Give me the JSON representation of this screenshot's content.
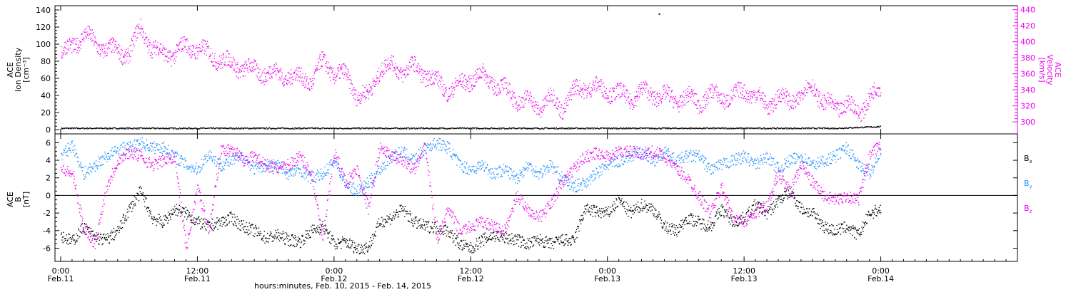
{
  "colors": {
    "black": "#000000",
    "magenta": "#ee00ee",
    "blue": "#1e90ff",
    "axis": "#000000"
  },
  "x_axis": {
    "ticks": [
      {
        "time_line1": "0:00",
        "time_line2": "Feb.11",
        "hours": 0
      },
      {
        "time_line1": "12:00",
        "time_line2": "Feb.11",
        "hours": 12
      },
      {
        "time_line1": "0:00",
        "time_line2": "Feb.12",
        "hours": 24
      },
      {
        "time_line1": "12:00",
        "time_line2": "Feb.12",
        "hours": 36
      },
      {
        "time_line1": "0:00",
        "time_line2": "Feb.13",
        "hours": 48
      },
      {
        "time_line1": "12:00",
        "time_line2": "Feb.13",
        "hours": 60
      },
      {
        "time_line1": "0:00",
        "time_line2": "Feb.14",
        "hours": 72
      }
    ],
    "title": "hours:minutes, Feb. 10, 2015 - Feb. 14, 2015"
  },
  "chart_data": [
    {
      "type": "scatter",
      "panel": "top",
      "ylabel_left": [
        "ACE",
        "Ion Density",
        "[cm⁻³]"
      ],
      "ylabel_right": [
        "ACE",
        "Velocity",
        "[km/s]"
      ],
      "y_ticks_left": [
        "0",
        "20",
        "40",
        "60",
        "80",
        "100",
        "120",
        "140"
      ],
      "y_ticks_right": [
        "300",
        "320",
        "340",
        "360",
        "380",
        "400",
        "420",
        "440"
      ],
      "ylim_left": [
        -5,
        145
      ],
      "ylim_right": [
        285,
        445
      ],
      "xlim_hours": [
        -0.5,
        84
      ],
      "grid": false,
      "series": [
        {
          "axis": "left",
          "color_key": "black",
          "x": [
            0,
            4,
            8,
            12,
            16,
            20,
            24,
            28,
            32,
            36,
            40,
            44,
            48,
            52,
            56,
            60,
            64,
            68,
            72
          ],
          "values": [
            2,
            2,
            2,
            2,
            2,
            2,
            2,
            2,
            2,
            2,
            2,
            2,
            2,
            2,
            2,
            2,
            2,
            2,
            4
          ]
        },
        {
          "axis": "right",
          "color_key": "magenta",
          "x": [
            0,
            1,
            2,
            3,
            4,
            5,
            6,
            7,
            8,
            9,
            10,
            11,
            12,
            13,
            14,
            15,
            16,
            17,
            18,
            19,
            20,
            21,
            22,
            23,
            24,
            25,
            26,
            27,
            28,
            29,
            30,
            31,
            32,
            33,
            34,
            35,
            36,
            37,
            38,
            39,
            40,
            41,
            42,
            43,
            44,
            45,
            46,
            47,
            48,
            49,
            50,
            51,
            52,
            53,
            54,
            55,
            56,
            57,
            58,
            59,
            60,
            61,
            62,
            63,
            64,
            65,
            66,
            67,
            68,
            69,
            70,
            71,
            72
          ],
          "values": [
            385,
            395,
            410,
            398,
            392,
            388,
            386,
            418,
            392,
            385,
            386,
            395,
            392,
            385,
            378,
            372,
            368,
            364,
            362,
            360,
            358,
            355,
            352,
            375,
            362,
            358,
            335,
            332,
            368,
            370,
            365,
            368,
            360,
            350,
            340,
            345,
            355,
            358,
            350,
            340,
            330,
            325,
            320,
            330,
            318,
            338,
            345,
            342,
            340,
            335,
            330,
            338,
            335,
            332,
            328,
            330,
            325,
            334,
            332,
            330,
            342,
            332,
            322,
            330,
            328,
            332,
            348,
            322,
            320,
            322,
            312,
            330,
            342
          ]
        }
      ]
    },
    {
      "type": "scatter",
      "panel": "bottom",
      "ylabel_left": [
        "ACE",
        "B",
        "[nT]"
      ],
      "y_ticks_left": [
        "-6",
        "-4",
        "-2",
        "0",
        "2",
        "4",
        "6"
      ],
      "ylim_left": [
        -7.5,
        7
      ],
      "xlim_hours": [
        -0.5,
        84
      ],
      "grid": false,
      "zero_line": true,
      "legend_labels": [
        {
          "base": "B",
          "sub": "x",
          "color_key": "black"
        },
        {
          "base": "B",
          "sub": "y",
          "color_key": "blue"
        },
        {
          "base": "B",
          "sub": "z",
          "color_key": "magenta"
        }
      ],
      "legend_placement": "right",
      "series": [
        {
          "color_key": "black",
          "x": [
            0,
            1,
            2,
            3,
            4,
            5,
            6,
            7,
            8,
            9,
            10,
            11,
            12,
            13,
            14,
            15,
            16,
            17,
            18,
            19,
            20,
            21,
            22,
            23,
            24,
            25,
            26,
            27,
            28,
            29,
            30,
            31,
            32,
            33,
            34,
            35,
            36,
            37,
            38,
            39,
            40,
            41,
            42,
            43,
            44,
            45,
            46,
            47,
            48,
            49,
            50,
            51,
            52,
            53,
            54,
            55,
            56,
            57,
            58,
            59,
            60,
            61,
            62,
            63,
            64,
            65,
            66,
            67,
            68,
            69,
            70,
            71,
            72
          ],
          "values": [
            -4.5,
            -5.2,
            -3.5,
            -4.8,
            -5.0,
            -4.0,
            -1.5,
            0.5,
            -2.5,
            -3.0,
            -1.5,
            -2.0,
            -3.0,
            -3.5,
            -3.0,
            -2.5,
            -3.5,
            -4.0,
            -4.8,
            -4.5,
            -5.0,
            -5.2,
            -4.0,
            -3.5,
            -5.5,
            -5.2,
            -6.0,
            -5.8,
            -3.0,
            -2.5,
            -1.5,
            -3.0,
            -3.5,
            -3.5,
            -4.0,
            -5.5,
            -6.0,
            -5.0,
            -4.5,
            -4.8,
            -5.0,
            -5.5,
            -5.0,
            -5.5,
            -5.0,
            -5.2,
            -1.5,
            -1.8,
            -2.0,
            -0.5,
            -2.0,
            -1.0,
            -1.5,
            -3.5,
            -4.0,
            -2.5,
            -3.0,
            -3.5,
            -1.5,
            -3.0,
            -2.5,
            -1.0,
            -2.0,
            -0.5,
            0.5,
            -1.5,
            -2.0,
            -3.5,
            -4.0,
            -3.5,
            -4.5,
            -2.0,
            -1.5
          ]
        },
        {
          "color_key": "blue",
          "x": [
            0,
            1,
            2,
            3,
            4,
            5,
            6,
            7,
            8,
            9,
            10,
            11,
            12,
            13,
            14,
            15,
            16,
            17,
            18,
            19,
            20,
            21,
            22,
            23,
            24,
            25,
            26,
            27,
            28,
            29,
            30,
            31,
            32,
            33,
            34,
            35,
            36,
            37,
            38,
            39,
            40,
            41,
            42,
            43,
            44,
            45,
            46,
            47,
            48,
            49,
            50,
            51,
            52,
            53,
            54,
            55,
            56,
            57,
            58,
            59,
            60,
            61,
            62,
            63,
            64,
            65,
            66,
            67,
            68,
            69,
            70,
            71,
            72
          ],
          "values": [
            4.5,
            5.8,
            2.5,
            3.5,
            4.5,
            5.2,
            5.5,
            6.0,
            5.5,
            5.5,
            4.5,
            3.5,
            3.0,
            4.8,
            3.5,
            4.0,
            4.5,
            3.0,
            3.5,
            3.5,
            2.5,
            3.0,
            2.0,
            2.5,
            4.0,
            1.5,
            0.5,
            1.5,
            3.0,
            4.5,
            5.0,
            4.0,
            5.5,
            6.0,
            5.5,
            3.5,
            3.0,
            3.5,
            2.5,
            3.0,
            2.0,
            3.5,
            2.5,
            3.5,
            2.0,
            1.0,
            1.5,
            2.5,
            3.5,
            4.0,
            4.5,
            5.0,
            4.0,
            5.0,
            4.0,
            4.5,
            4.5,
            3.0,
            3.5,
            4.0,
            4.5,
            3.5,
            4.5,
            3.0,
            4.0,
            4.5,
            3.5,
            4.0,
            4.5,
            5.5,
            3.5,
            2.5,
            5.5
          ]
        },
        {
          "color_key": "magenta",
          "x": [
            0,
            1,
            2,
            3,
            4,
            5,
            6,
            7,
            8,
            9,
            10,
            11,
            12,
            13,
            14,
            15,
            16,
            17,
            18,
            19,
            20,
            21,
            22,
            23,
            24,
            25,
            26,
            27,
            28,
            29,
            30,
            31,
            32,
            33,
            34,
            35,
            36,
            37,
            38,
            39,
            40,
            41,
            42,
            43,
            44,
            45,
            46,
            47,
            48,
            49,
            50,
            51,
            52,
            53,
            54,
            55,
            56,
            57,
            58,
            59,
            60,
            61,
            62,
            63,
            64,
            65,
            66,
            67,
            68,
            69,
            70,
            71,
            72
          ],
          "values": [
            3.0,
            2.5,
            -3.5,
            -5.5,
            1.0,
            4.0,
            5.0,
            4.5,
            3.5,
            4.0,
            4.5,
            -6.0,
            1.0,
            -4.0,
            5.0,
            5.5,
            4.0,
            4.5,
            3.5,
            3.0,
            3.5,
            4.5,
            2.5,
            -5.0,
            5.0,
            1.5,
            3.0,
            -1.5,
            5.5,
            4.5,
            4.0,
            3.0,
            5.5,
            -5.0,
            -1.5,
            -4.0,
            -3.5,
            -3.0,
            -3.5,
            -4.0,
            0.0,
            -1.5,
            -2.5,
            -1.0,
            1.5,
            3.0,
            4.5,
            4.8,
            4.5,
            5.0,
            5.0,
            4.8,
            5.0,
            4.5,
            3.0,
            2.0,
            0.0,
            -2.0,
            1.0,
            -2.5,
            -3.0,
            -2.0,
            -1.0,
            2.5,
            0.5,
            3.5,
            1.5,
            0.0,
            -0.5,
            0.0,
            -0.5,
            4.5,
            6.0
          ]
        }
      ]
    }
  ],
  "annotations": {
    "outlier_hours": 52.5,
    "outlier_value": 136
  }
}
